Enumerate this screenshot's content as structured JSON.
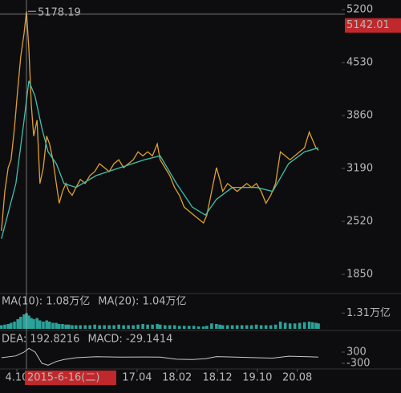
{
  "chart_data": [
    {
      "type": "line",
      "xlim": [
        2014.4,
        2021.57
      ],
      "xticks": [
        {
          "value": 2014.75,
          "label": "4.10"
        },
        {
          "value": 2017.25,
          "label": "17.04"
        },
        {
          "value": 2018.08,
          "label": "18.02"
        },
        {
          "value": 2018.92,
          "label": "18.12"
        },
        {
          "value": 2019.75,
          "label": "19.10"
        },
        {
          "value": 2020.58,
          "label": "20.08"
        }
      ],
      "ylim": [
        1617,
        5322
      ],
      "yticks": [
        5200,
        4530,
        3860,
        3190,
        2520,
        1850
      ],
      "series": [
        {
          "color": "#e0a030",
          "x": [
            2014.43,
            2014.5,
            2014.57,
            2014.63,
            2014.7,
            2014.77,
            2014.83,
            2014.9,
            2014.95,
            2015.0,
            2015.05,
            2015.1,
            2015.17,
            2015.23,
            2015.3,
            2015.37,
            2015.43,
            2015.5,
            2015.57,
            2015.63,
            2015.7,
            2015.77,
            2015.83,
            2015.9,
            2015.98,
            2016.07,
            2016.17,
            2016.27,
            2016.37,
            2016.47,
            2016.57,
            2016.67,
            2016.77,
            2016.87,
            2016.97,
            2017.07,
            2017.17,
            2017.27,
            2017.37,
            2017.47,
            2017.57,
            2017.67,
            2017.73,
            2017.83,
            2017.93,
            2018.03,
            2018.13,
            2018.23,
            2018.33,
            2018.43,
            2018.53,
            2018.63,
            2018.7,
            2018.8,
            2018.9,
            2018.97,
            2019.03,
            2019.13,
            2019.23,
            2019.33,
            2019.43,
            2019.53,
            2019.63,
            2019.73,
            2019.83,
            2019.93,
            2020.03,
            2020.13,
            2020.23,
            2020.33,
            2020.43,
            2020.53,
            2020.63,
            2020.73,
            2020.83,
            2020.9,
            2020.97,
            2021.02
          ],
          "values": [
            2400,
            2900,
            3200,
            3300,
            3700,
            4200,
            4600,
            4900,
            5178.19,
            4700,
            4000,
            3600,
            3800,
            3000,
            3200,
            3600,
            3500,
            3300,
            3000,
            2750,
            2900,
            3000,
            2900,
            2850,
            2950,
            3050,
            3000,
            3100,
            3150,
            3250,
            3200,
            3150,
            3250,
            3300,
            3200,
            3250,
            3300,
            3400,
            3350,
            3400,
            3350,
            3500,
            3300,
            3200,
            3100,
            2950,
            2850,
            2700,
            2650,
            2600,
            2550,
            2500,
            2600,
            2900,
            3200,
            3050,
            2900,
            3000,
            2950,
            2900,
            2950,
            3000,
            2950,
            3000,
            2900,
            2750,
            2850,
            3000,
            3400,
            3350,
            3300,
            3350,
            3400,
            3450,
            3650,
            3550,
            3450,
            3420
          ]
        },
        {
          "color": "#40c0b0",
          "x": [
            2014.43,
            2014.73,
            2014.9,
            2015.0,
            2015.13,
            2015.27,
            2015.4,
            2015.57,
            2015.73,
            2015.98,
            2016.4,
            2016.9,
            2017.4,
            2017.73,
            2018.07,
            2018.4,
            2018.67,
            2018.9,
            2019.23,
            2019.73,
            2020.07,
            2020.4,
            2020.73,
            2021.02
          ],
          "values": [
            2300,
            3000,
            3800,
            4300,
            4100,
            3700,
            3400,
            3250,
            3000,
            2950,
            3100,
            3200,
            3300,
            3350,
            3000,
            2700,
            2600,
            2800,
            2950,
            2950,
            2900,
            3250,
            3400,
            3450
          ]
        }
      ],
      "max": 5178.19,
      "crosshair": {
        "date": "2015-6-16(二)",
        "price": 5142.01
      }
    },
    {
      "type": "bar",
      "texts": [
        {
          "text": "MA(10): 1.08万亿",
          "color": "#e8a33a"
        },
        {
          "text": "MA(20): 1.04万亿",
          "color": "#d63fb8"
        }
      ],
      "color": "#2aa39a",
      "ylim": [
        0,
        1.6
      ],
      "yticks": [
        {
          "value": 1.31,
          "label": "1.31万亿"
        }
      ],
      "values": [
        0.3,
        0.35,
        0.4,
        0.5,
        0.6,
        0.8,
        1.0,
        1.2,
        1.31,
        1.1,
        0.9,
        0.8,
        0.9,
        0.7,
        0.6,
        0.7,
        0.6,
        0.5,
        0.5,
        0.4,
        0.4,
        0.35,
        0.35,
        0.3,
        0.3,
        0.3,
        0.3,
        0.3,
        0.35,
        0.3,
        0.3,
        0.3,
        0.3,
        0.35,
        0.3,
        0.3,
        0.3,
        0.35,
        0.4,
        0.35,
        0.35,
        0.4,
        0.35,
        0.3,
        0.3,
        0.3,
        0.25,
        0.25,
        0.25,
        0.25,
        0.2,
        0.2,
        0.25,
        0.45,
        0.4,
        0.35,
        0.3,
        0.3,
        0.3,
        0.3,
        0.3,
        0.3,
        0.3,
        0.35,
        0.3,
        0.3,
        0.3,
        0.35,
        0.6,
        0.5,
        0.45,
        0.45,
        0.5,
        0.55,
        0.6,
        0.55,
        0.5,
        0.45
      ]
    },
    {
      "type": "line",
      "texts": [
        {
          "text": "DEA: 192.8216",
          "color": "#e8a33a"
        },
        {
          "text": "MACD: -29.1414",
          "color": "#e6e6e6"
        }
      ],
      "color": "#c8c8c8",
      "ylim": [
        -600,
        600
      ],
      "yticks": [
        300,
        -300
      ],
      "x": [
        2014.43,
        2014.73,
        2014.9,
        2015.0,
        2015.13,
        2015.27,
        2015.4,
        2015.57,
        2015.73,
        2015.98,
        2016.4,
        2016.9,
        2017.4,
        2017.73,
        2018.07,
        2018.4,
        2018.67,
        2018.9,
        2019.23,
        2019.73,
        2020.07,
        2020.4,
        2020.73,
        2021.02
      ],
      "values": [
        0,
        100,
        300,
        500,
        300,
        -300,
        -400,
        -200,
        -100,
        0,
        50,
        30,
        40,
        30,
        -80,
        -100,
        -50,
        60,
        40,
        0,
        -20,
        80,
        60,
        30
      ]
    }
  ]
}
